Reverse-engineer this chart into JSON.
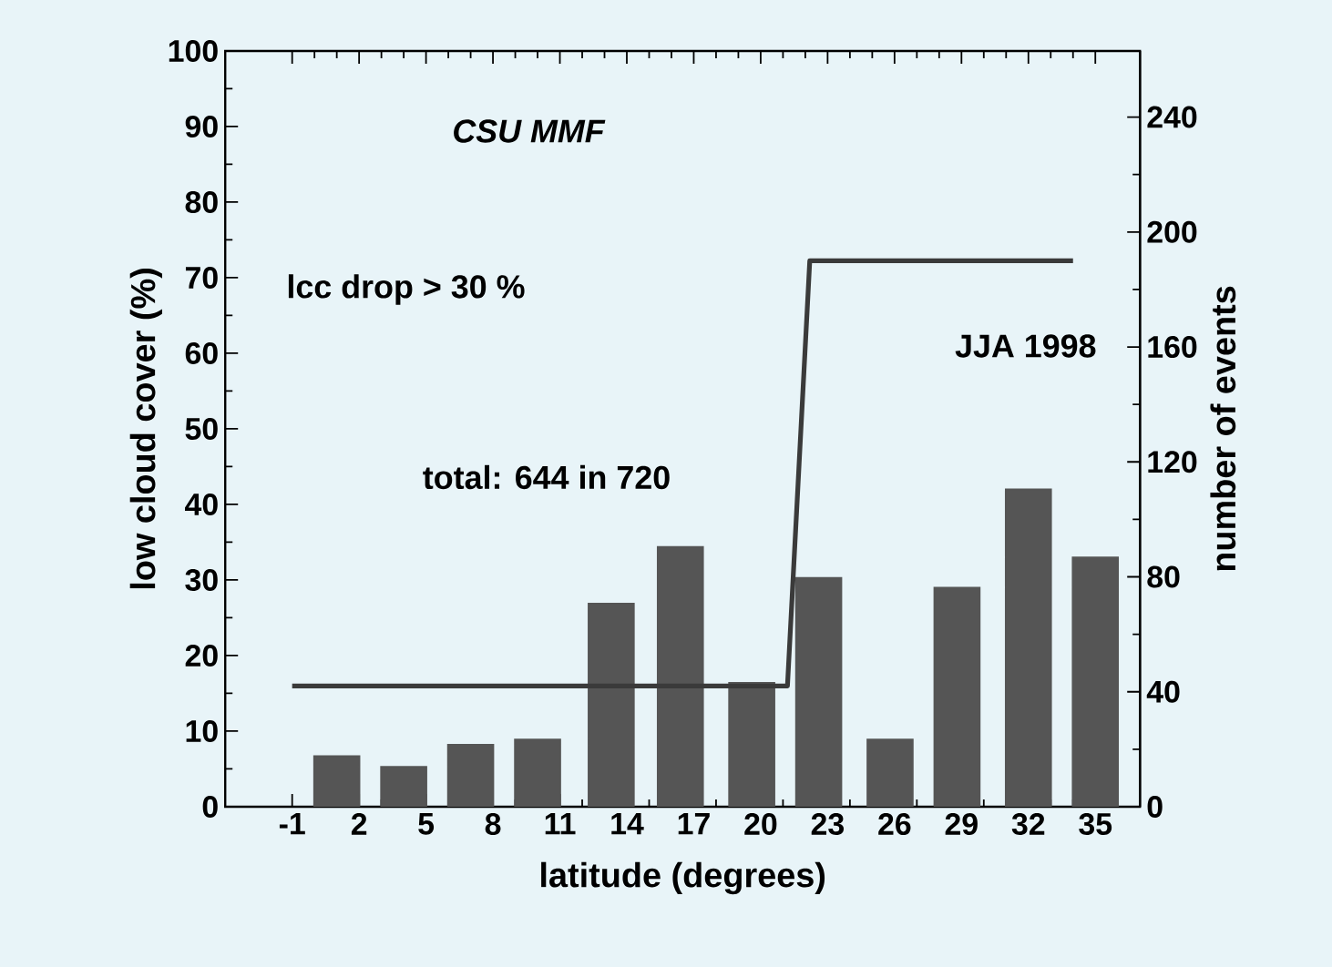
{
  "chart_data": {
    "type": "bar",
    "xlabel": "latitude (degrees)",
    "ylabel": "low cloud cover (%)",
    "y2label": "number of events",
    "annotations": [
      "CSU MMF",
      "lcc drop > 30 %",
      "JJA 1998",
      "total: 644 in 720"
    ],
    "xlim": [
      -4,
      37
    ],
    "xticks": [
      -1,
      2,
      5,
      8,
      11,
      14,
      17,
      20,
      23,
      26,
      29,
      32,
      35
    ],
    "ylim": [
      0,
      100
    ],
    "yticks": [
      0,
      10,
      20,
      30,
      40,
      50,
      60,
      70,
      80,
      90,
      100
    ],
    "y2lim": [
      0,
      263
    ],
    "y2ticks": [
      0,
      40,
      80,
      120,
      160,
      200,
      240
    ],
    "series": [
      {
        "color": "#555555",
        "x": [
          1,
          4,
          7,
          10,
          13.3,
          16.4,
          19.6,
          22.6,
          25.8,
          28.8,
          32,
          35
        ],
        "values": [
          6.7,
          5.3,
          8.2,
          8.9,
          26.9,
          34.4,
          16.4,
          30.3,
          8.9,
          29.0,
          42.0,
          33.0
        ]
      },
      {
        "type": "line",
        "axis": "y2",
        "color": "#3a3a3a",
        "x": [
          -1,
          21.2,
          22.2,
          34
        ],
        "values": [
          42,
          42,
          190,
          190
        ]
      }
    ]
  }
}
